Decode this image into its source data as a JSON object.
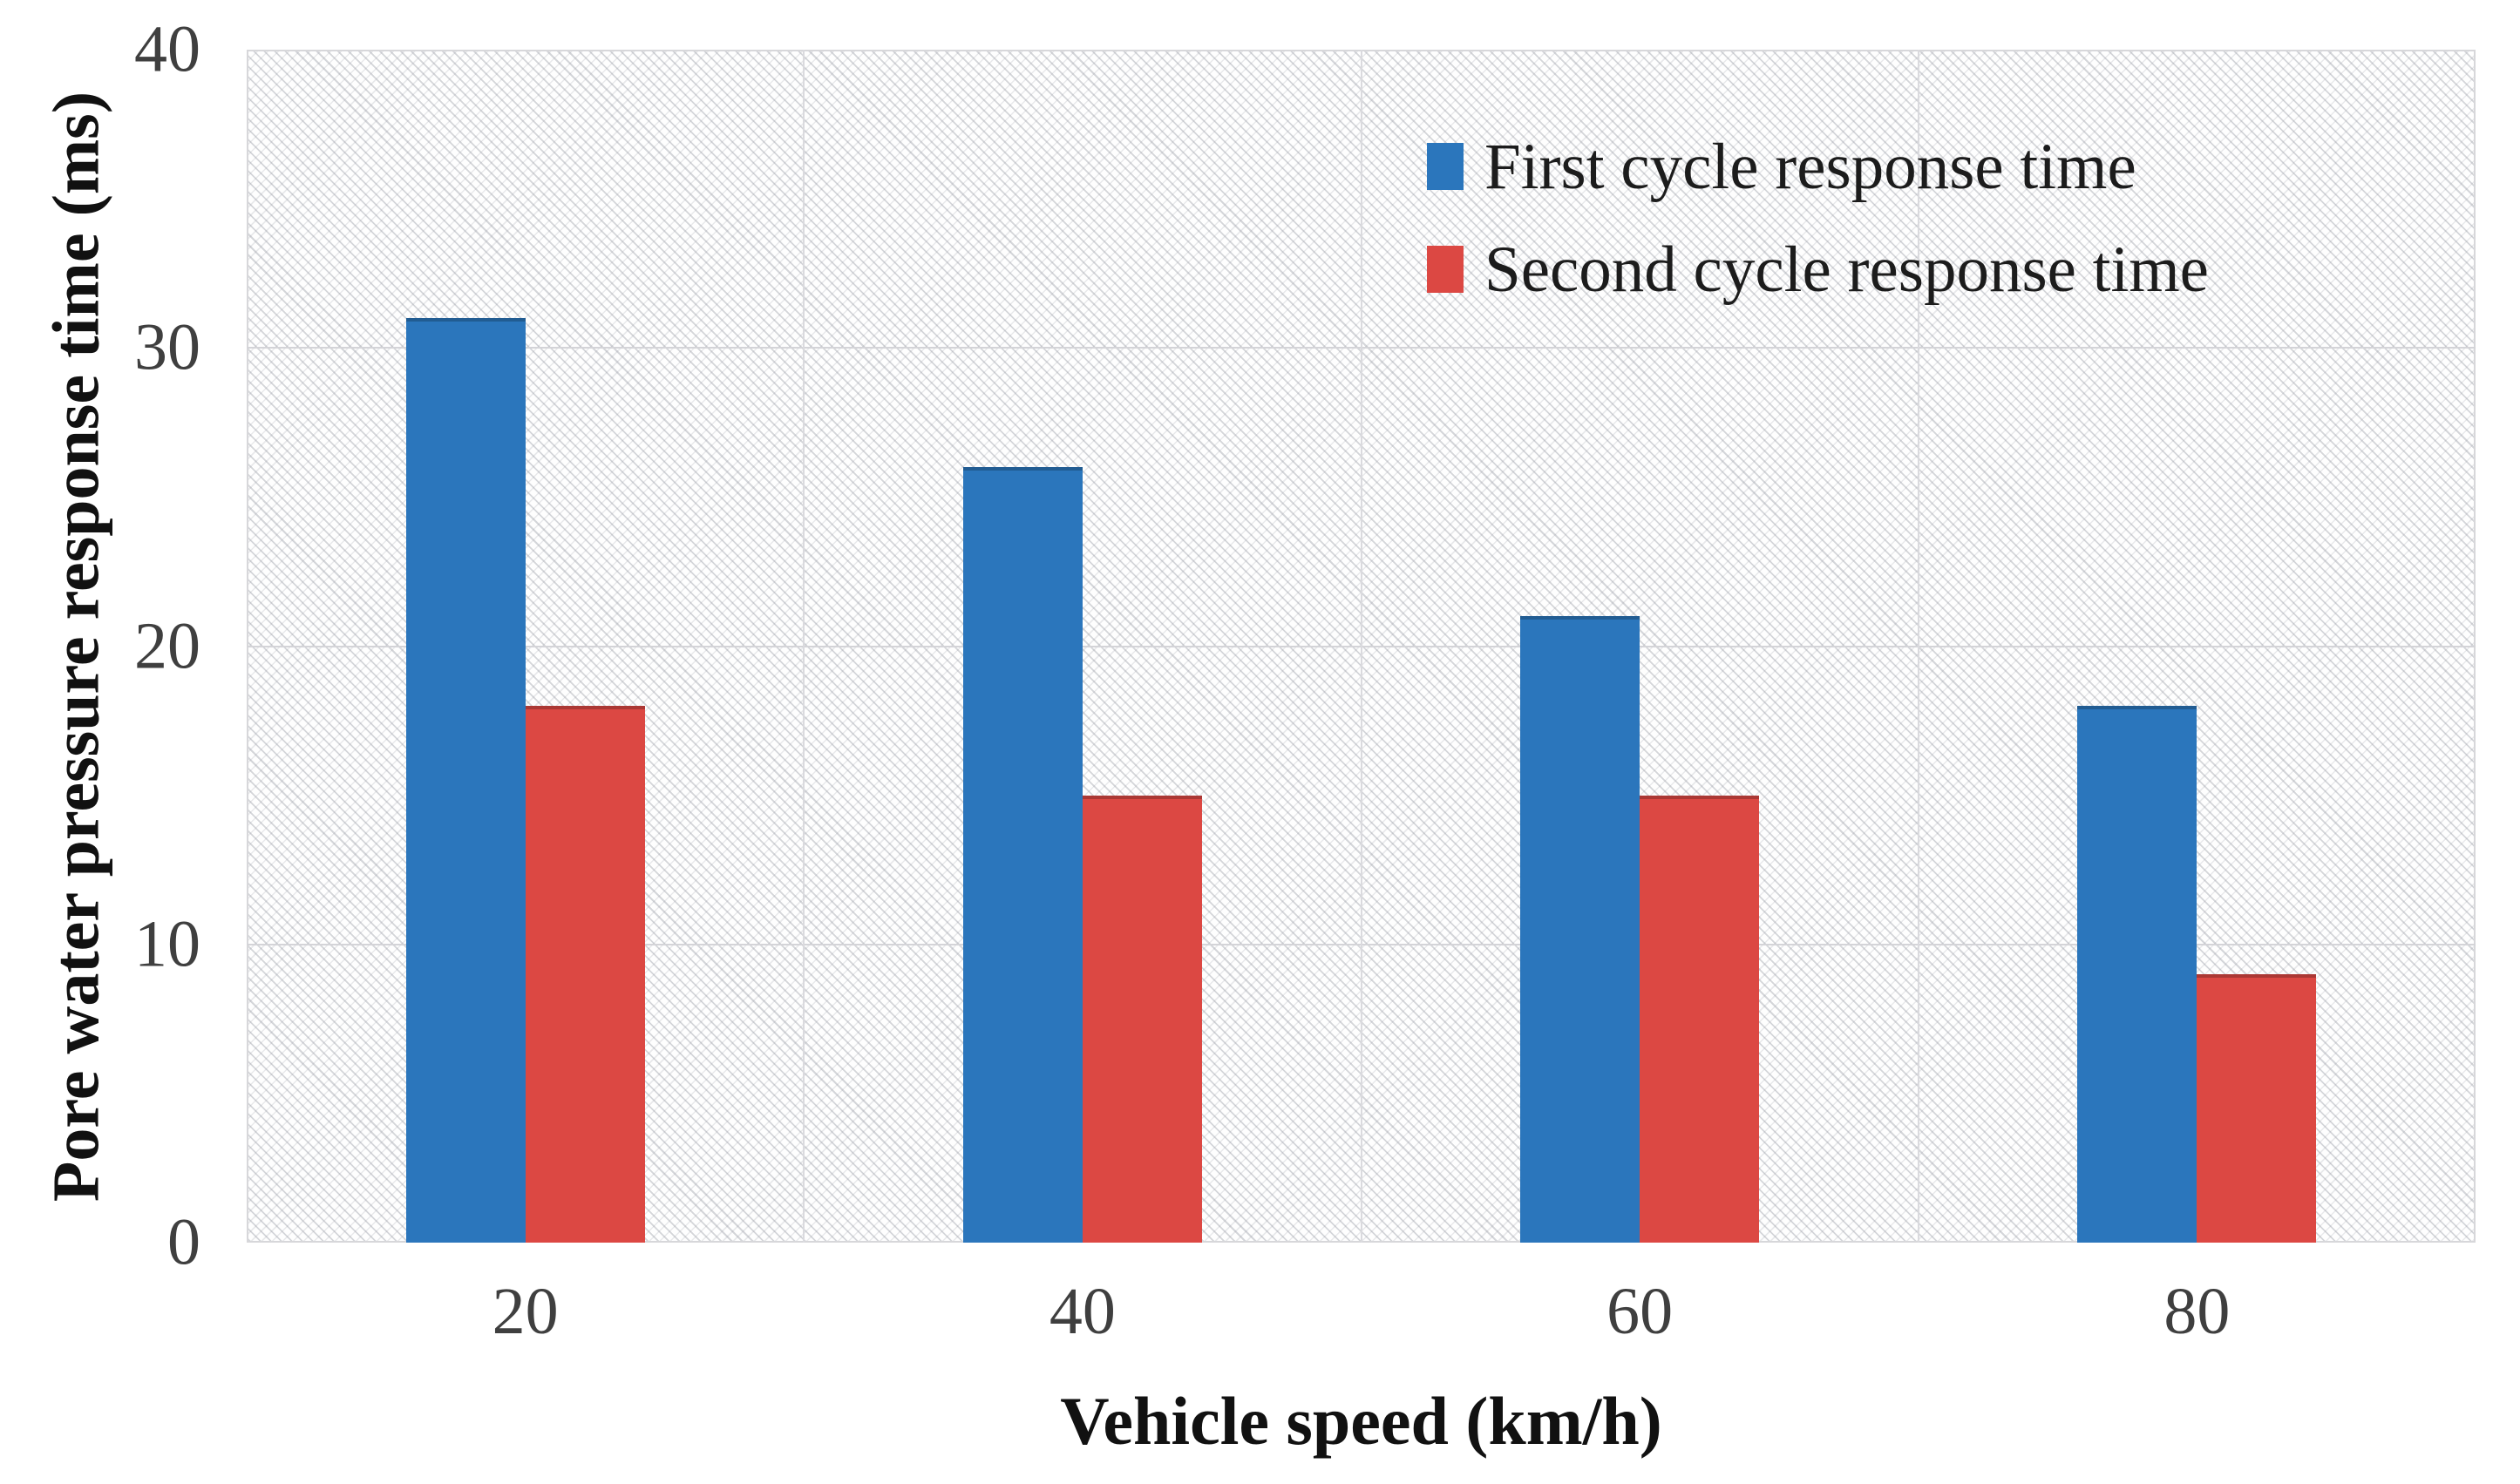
{
  "chart_data": {
    "type": "bar",
    "title": "",
    "xlabel": "Vehicle speed (km/h)",
    "ylabel": "Pore water pressure response time (ms)",
    "categories": [
      "20",
      "40",
      "60",
      "80"
    ],
    "series": [
      {
        "name": "First cycle response time",
        "color": "#2B76BC",
        "values": [
          31,
          26,
          21,
          18
        ]
      },
      {
        "name": "Second cycle response time",
        "color": "#DC4843",
        "values": [
          18,
          15,
          15,
          9
        ]
      }
    ],
    "ylim": [
      0,
      40
    ],
    "yticks": [
      0,
      10,
      20,
      30,
      40
    ],
    "grid": true,
    "legend_position": "top-right",
    "plot_background": "diagonal-hatch",
    "gridline_color": "#d4d4d8",
    "tick_color": "#3f3f3f"
  }
}
